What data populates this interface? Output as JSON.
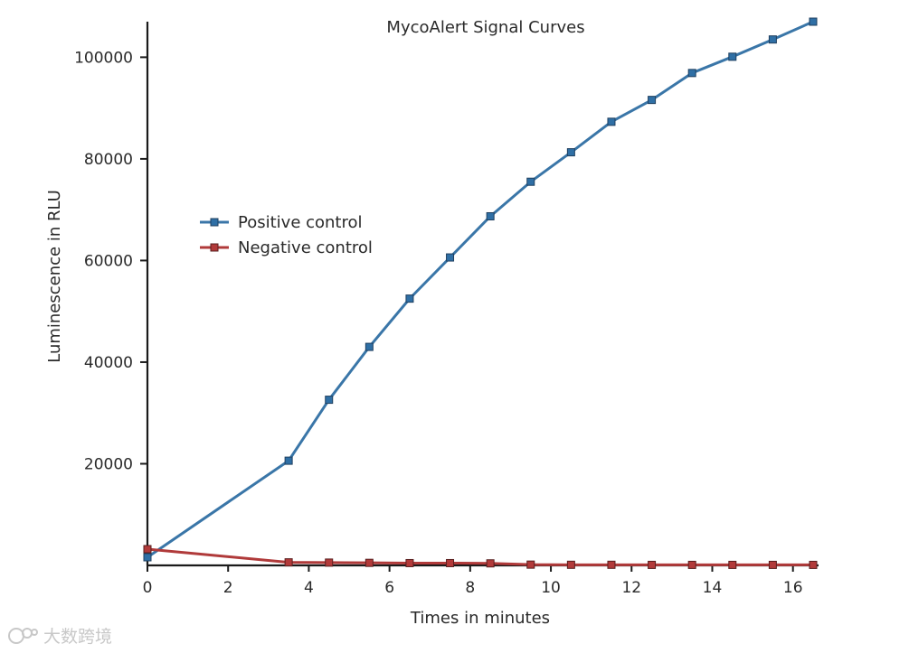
{
  "chart_data": {
    "type": "line",
    "title": "MycoAlert Signal Curves",
    "xlabel": "Times in minutes",
    "ylabel": "Luminescence in RLU",
    "xlim": [
      0,
      16.5
    ],
    "ylim": [
      0,
      107000
    ],
    "xticks": [
      0,
      2,
      4,
      6,
      8,
      10,
      12,
      14,
      16
    ],
    "yticks": [
      20000,
      40000,
      60000,
      80000,
      100000
    ],
    "grid": false,
    "legend_position": "left-middle",
    "series": [
      {
        "name": "Positive control",
        "color": "#3a76a8",
        "marker_fill": "#2f6fa5",
        "x": [
          0,
          3.5,
          4.5,
          5.5,
          6.5,
          7.5,
          8.5,
          9.5,
          10.5,
          11.5,
          12.5,
          13.5,
          14.5,
          15.5,
          16.5
        ],
        "y": [
          1600,
          20600,
          32600,
          43000,
          52500,
          60600,
          68700,
          75500,
          81300,
          87300,
          91600,
          96900,
          100100,
          103500,
          107000
        ]
      },
      {
        "name": "Negative control",
        "color": "#b03a3a",
        "marker_fill": "#b23a3a",
        "x": [
          0,
          3.5,
          4.5,
          5.5,
          6.5,
          7.5,
          8.5,
          9.5,
          10.5,
          11.5,
          12.5,
          13.5,
          14.5,
          15.5,
          16.5
        ],
        "y": [
          3200,
          600,
          550,
          500,
          450,
          450,
          400,
          150,
          120,
          120,
          100,
          100,
          100,
          100,
          100
        ]
      }
    ]
  },
  "watermark": {
    "text": "大数跨境",
    "icon": "watermark-logo-icon"
  }
}
